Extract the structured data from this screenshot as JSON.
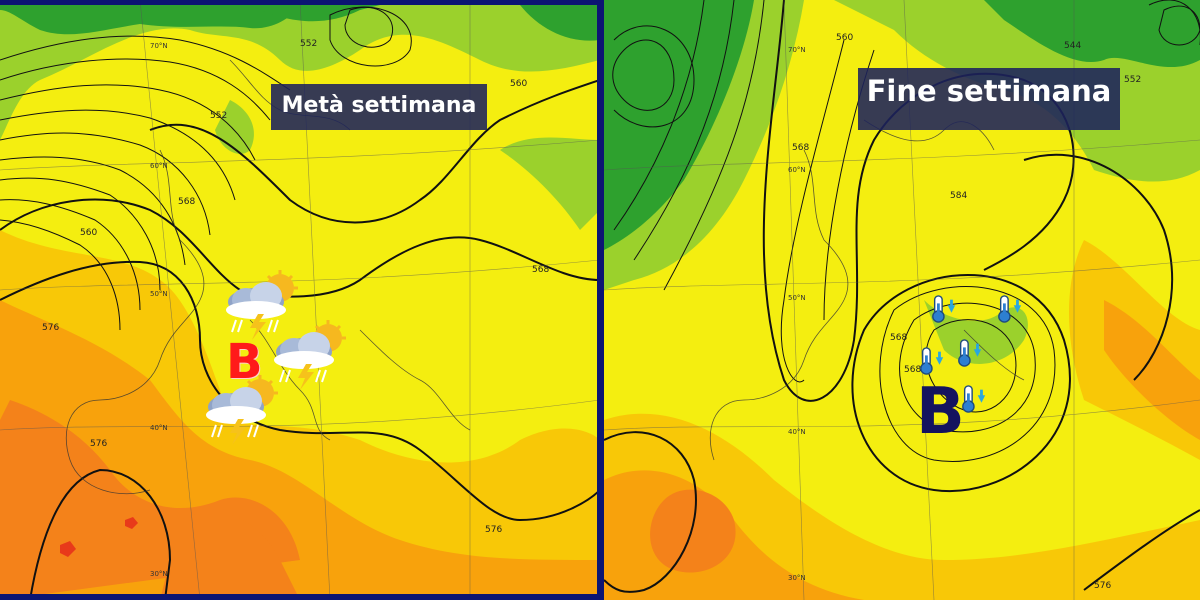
{
  "captions": {
    "left": "Metà settimana",
    "right": "Fine settimana"
  },
  "lows": {
    "left": "B",
    "right": "B"
  },
  "isohypse_labels_left": [
    "552",
    "560",
    "568",
    "560",
    "568",
    "576",
    "576",
    "576",
    "552"
  ],
  "isohypse_labels_right": [
    "560",
    "568",
    "584",
    "544",
    "552",
    "568",
    "568",
    "576"
  ],
  "lat_labels_left": [
    "70°N",
    "60°N",
    "50°N",
    "40°N",
    "30°N"
  ],
  "lat_labels_right": [
    "70°N",
    "60°N",
    "50°N",
    "40°N",
    "30°N"
  ],
  "colors": {
    "frame": "#0c1573",
    "green_dark": "#2ea12e",
    "green_light": "#9bd12c",
    "yellow": "#f4ee10",
    "yellow_orange": "#f8c807",
    "orange": "#f8a20c",
    "orange_dark": "#f4821a",
    "red_low": "#ff1a1a",
    "navy_low": "#14135f"
  },
  "icons": {
    "left": [
      "storm-sun-icon",
      "storm-sun-icon",
      "storm-sun-icon"
    ],
    "right": [
      "thermometer-down-icon",
      "thermometer-down-icon",
      "thermometer-down-icon",
      "thermometer-down-icon",
      "thermometer-down-icon"
    ]
  }
}
